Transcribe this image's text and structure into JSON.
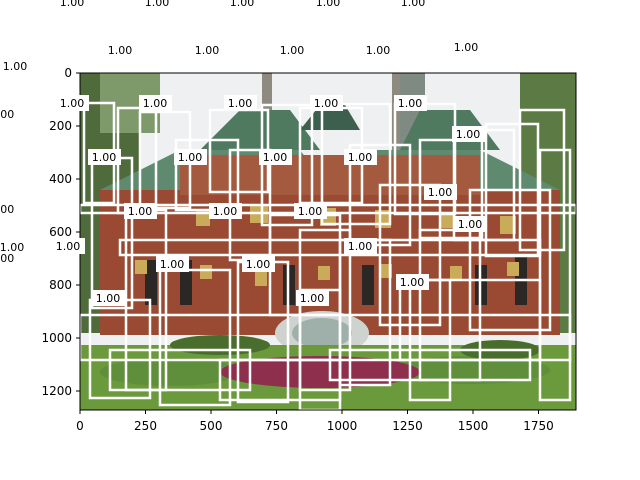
{
  "figure": {
    "image_description": "photo of a red-brick building with green glazed-tile roofs, Chinese gold characters on facade, emblem and garden in front"
  },
  "axes": {
    "x_ticks": [
      "0",
      "250",
      "500",
      "750",
      "1000",
      "1250",
      "1500",
      "1750"
    ],
    "y_ticks": [
      "0",
      "200",
      "400",
      "600",
      "800",
      "1000",
      "1200"
    ]
  },
  "detections": {
    "score_label": "1.00",
    "count": 36
  },
  "outside_labels": [
    {
      "text": "1.00",
      "id": "o1"
    },
    {
      "text": "1.00",
      "id": "o2"
    },
    {
      "text": "1.00",
      "id": "o3"
    },
    {
      "text": "1.00",
      "id": "o4"
    },
    {
      "text": "1.00",
      "id": "o5"
    },
    {
      "text": "1.00",
      "id": "o6"
    },
    {
      "text": "1.00",
      "id": "o7"
    },
    {
      "text": "1.00",
      "id": "o8"
    },
    {
      "text": "1.00",
      "id": "o9"
    },
    {
      "text": "1.00",
      "id": "o10"
    },
    {
      "text": "1.00",
      "id": "o11"
    },
    {
      "text": "1.00",
      "id": "o12"
    },
    {
      "text": "1.00",
      "id": "o13"
    },
    {
      "text": "1.00",
      "id": "o14"
    },
    {
      "text": "1.00",
      "id": "o15"
    }
  ],
  "colors": {
    "box": "#ffffff",
    "label_bg": "#ffffff",
    "sky": "#f2f3f4",
    "roof": "#4f7a5f",
    "brick": "#9a4a33",
    "grass": "#6a9a3c",
    "hedge": "#5f8f3a",
    "flowers": "#8e2f4e",
    "gold": "#c9ab5a"
  }
}
